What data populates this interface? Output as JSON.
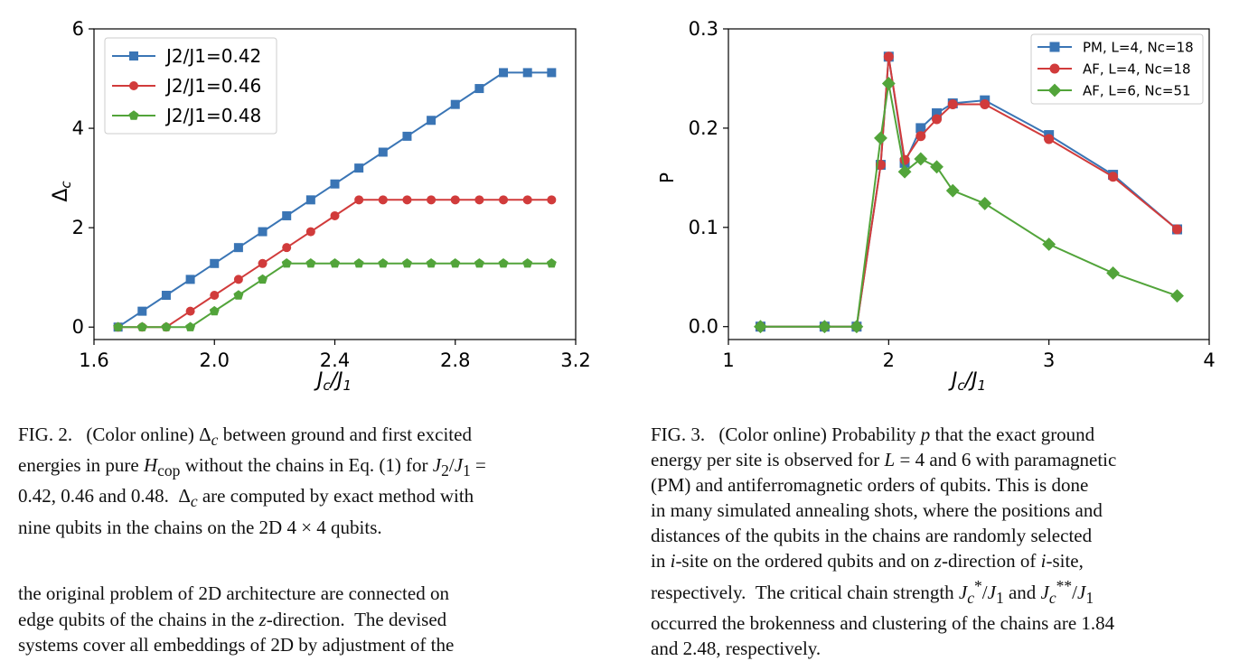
{
  "chart_data": [
    {
      "type": "line",
      "xlabel": "Jc/J1",
      "ylabel": "Δc",
      "xlim": [
        1.6,
        3.2
      ],
      "ylim": [
        -0.25,
        6.0
      ],
      "xticks": [
        1.6,
        2.0,
        2.4,
        2.8,
        3.2
      ],
      "xtick_labels": [
        "1.6",
        "2.0",
        "2.4",
        "2.8",
        "3.2"
      ],
      "yticks": [
        0,
        2,
        4,
        6
      ],
      "ytick_labels": [
        "0",
        "2",
        "4",
        "6"
      ],
      "grid": false,
      "legend_position": "top-left",
      "x": [
        1.68,
        1.76,
        1.84,
        1.92,
        2.0,
        2.08,
        2.16,
        2.24,
        2.32,
        2.4,
        2.48,
        2.56,
        2.64,
        2.72,
        2.8,
        2.88,
        2.96,
        3.04,
        3.12
      ],
      "series": [
        {
          "name": "J2/J1=0.42",
          "color": "#3a75b5",
          "marker": "square",
          "values": [
            0.0,
            0.32,
            0.64,
            0.96,
            1.28,
            1.6,
            1.92,
            2.24,
            2.56,
            2.88,
            3.2,
            3.52,
            3.84,
            4.16,
            4.48,
            4.8,
            5.12,
            5.12,
            5.12
          ]
        },
        {
          "name": "J2/J1=0.46",
          "color": "#d13b3b",
          "marker": "circle",
          "values": [
            0.0,
            0.0,
            0.0,
            0.32,
            0.64,
            0.96,
            1.28,
            1.6,
            1.92,
            2.24,
            2.56,
            2.56,
            2.56,
            2.56,
            2.56,
            2.56,
            2.56,
            2.56,
            2.56
          ]
        },
        {
          "name": "J2/J1=0.48",
          "color": "#52a43a",
          "marker": "pentagon",
          "values": [
            0.0,
            0.0,
            0.0,
            0.0,
            0.32,
            0.64,
            0.96,
            1.28,
            1.28,
            1.28,
            1.28,
            1.28,
            1.28,
            1.28,
            1.28,
            1.28,
            1.28,
            1.28,
            1.28
          ]
        }
      ]
    },
    {
      "type": "line",
      "xlabel": "Jc/J1",
      "ylabel": "P",
      "xlim": [
        1.0,
        4.0
      ],
      "ylim": [
        -0.013,
        0.3
      ],
      "xticks": [
        1,
        2,
        3,
        4
      ],
      "xtick_labels": [
        "1",
        "2",
        "3",
        "4"
      ],
      "yticks": [
        0.0,
        0.1,
        0.2,
        0.3
      ],
      "ytick_labels": [
        "0.0",
        "0.1",
        "0.2",
        "0.3"
      ],
      "grid": false,
      "legend_position": "top-right",
      "series": [
        {
          "name": "PM, L=4, Nc=18",
          "color": "#3a75b5",
          "marker": "square",
          "x": [
            1.2,
            1.6,
            1.8,
            1.95,
            2.0,
            2.1,
            2.2,
            2.3,
            2.4,
            2.6,
            3.0,
            3.4,
            3.8
          ],
          "values": [
            0.0,
            0.0,
            0.0,
            0.163,
            0.272,
            0.165,
            0.2,
            0.215,
            0.225,
            0.228,
            0.193,
            0.153,
            0.098
          ]
        },
        {
          "name": "AF, L=4, Nc=18",
          "color": "#d13b3b",
          "marker": "circle",
          "x": [
            1.2,
            1.6,
            1.8,
            1.95,
            2.0,
            2.1,
            2.2,
            2.3,
            2.4,
            2.6,
            3.0,
            3.4,
            3.8
          ],
          "values": [
            0.0,
            0.0,
            0.0,
            0.163,
            0.272,
            0.168,
            0.192,
            0.209,
            0.224,
            0.224,
            0.189,
            0.151,
            0.098
          ]
        },
        {
          "name": "AF, L=6, Nc=51",
          "color": "#52a43a",
          "marker": "diamond",
          "x": [
            1.2,
            1.6,
            1.8,
            1.95,
            2.0,
            2.1,
            2.2,
            2.3,
            2.4,
            2.6,
            3.0,
            3.4,
            3.8
          ],
          "values": [
            0.0,
            0.0,
            0.0,
            0.19,
            0.245,
            0.156,
            0.169,
            0.161,
            0.137,
            0.124,
            0.083,
            0.054,
            0.031
          ]
        }
      ]
    }
  ],
  "captions": {
    "fig2_label": "FIG. 2.",
    "fig2_lines": [
      "(Color online) Δc between ground and first excited",
      "energies in pure Hcop without the chains in Eq. (1) for J2/J1 =",
      "0.42, 0.46 and 0.48.  Δc are computed by exact method with",
      "nine qubits in the chains on the 2D 4 × 4 qubits."
    ],
    "fig3_label": "FIG. 3.",
    "fig3_lines": [
      "(Color online) Probability p that the exact ground",
      "energy per site is observed for L = 4 and 6 with paramagnetic",
      "(PM) and antiferromagnetic orders of qubits.  This is done",
      "in many simulated annealing shots, where the positions and",
      "distances of the qubits in the chains are randomly selected",
      "in i-site on the ordered qubits and on z-direction of i-site,",
      "respectively.  The critical chain strength J*c/J1 and J**c/J1",
      "occurred the brokenness and clustering of the chains are 1.84",
      "and 2.48, respectively."
    ]
  },
  "body_text": [
    "the original problem of 2D architecture are connected on",
    "edge qubits of the chains in the z-direction.  The devised",
    "systems cover all embeddings of 2D by adjustment of the"
  ]
}
